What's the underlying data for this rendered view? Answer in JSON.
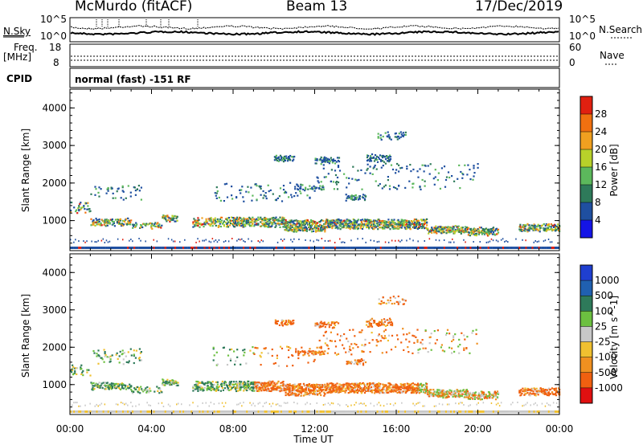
{
  "header": {
    "station": "McMurdo (fitACF)",
    "beam": "Beam 13",
    "date": "17/Dec/2019"
  },
  "top_panels": {
    "nsky_label": "N.Sky",
    "nsearch_label": "N.Search",
    "noise_ticks_left": [
      "10^5",
      "10^0"
    ],
    "noise_ticks_right": [
      "10^5",
      "10^0"
    ],
    "freq_label_1": "Freq.",
    "freq_label_2": "[MHz]",
    "freq_ticks": [
      "18",
      "8"
    ],
    "nave_label": "Nave",
    "nave_ticks": [
      "60",
      "0"
    ],
    "cpid_label": "CPID",
    "cpid_text": "normal (fast) -151 RF"
  },
  "colors": {
    "power_scale": [
      "#1414e6",
      "#1f4fa0",
      "#2e7a5a",
      "#5cb85c",
      "#b8d12a",
      "#f0a020",
      "#f07010",
      "#e02010"
    ],
    "velocity_scale": [
      "#1f3fd0",
      "#2060b0",
      "#2e7a5a",
      "#6cc040",
      "#c8c8c8",
      "#f0c030",
      "#f09020",
      "#f06010",
      "#e01010"
    ]
  },
  "chart_data": [
    {
      "type": "heatmap",
      "title": "Power",
      "xlabel": "Time UT",
      "ylabel": "Slant Range [km]",
      "x_ticks": [
        "00:00",
        "04:00",
        "08:00",
        "12:00",
        "16:00",
        "20:00",
        "00:00"
      ],
      "y_ticks": [
        "1000",
        "2000",
        "3000",
        "4000"
      ],
      "ylim": [
        200,
        4500
      ],
      "colorbar_label": "Power [dB]",
      "colorbar_ticks": [
        "4",
        "8",
        "12",
        "16",
        "20",
        "24",
        "28"
      ],
      "colorbar_range": [
        0,
        32
      ]
    },
    {
      "type": "heatmap",
      "title": "Velocity",
      "xlabel": "Time UT",
      "ylabel": "Slant Range [km]",
      "x_ticks": [
        "00:00",
        "04:00",
        "08:00",
        "12:00",
        "16:00",
        "20:00",
        "00:00"
      ],
      "y_ticks": [
        "1000",
        "2000",
        "3000",
        "4000"
      ],
      "ylim": [
        200,
        4500
      ],
      "colorbar_label": "Velocity [m s^-1]",
      "colorbar_ticks": [
        "1000",
        "500",
        "100",
        "25",
        "-25",
        "-100",
        "-500",
        "-1000"
      ]
    }
  ],
  "time_axis_label": "Time UT"
}
